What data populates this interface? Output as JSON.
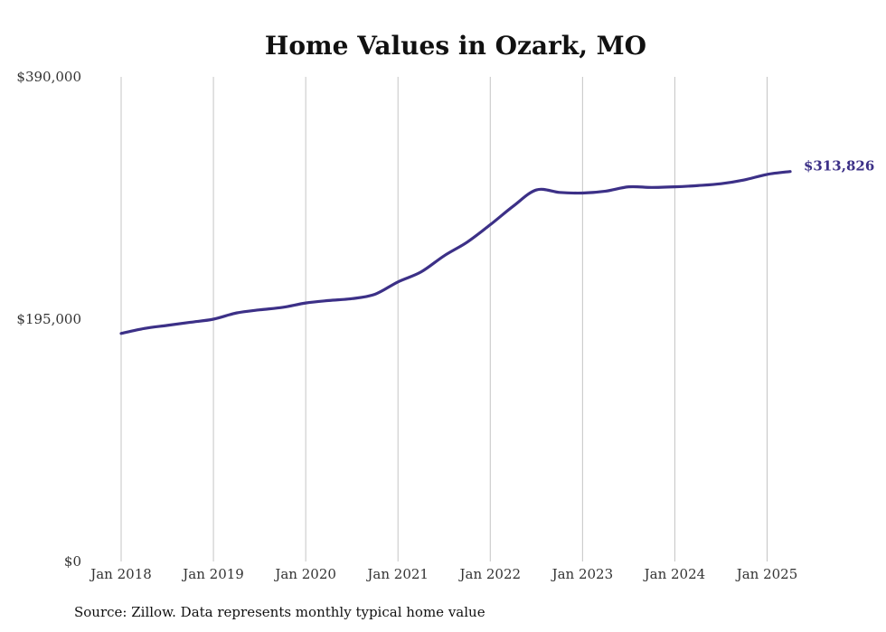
{
  "chart_data": {
    "type": "line",
    "title": "Home Values in Ozark, MO",
    "xlabel": "",
    "ylabel": "",
    "x_ticks": [
      "Jan 2018",
      "Jan 2019",
      "Jan 2020",
      "Jan 2021",
      "Jan 2022",
      "Jan 2023",
      "Jan 2024",
      "Jan 2025"
    ],
    "y_ticks": [
      0,
      195000,
      390000
    ],
    "y_tick_labels": [
      "$0",
      "$195,000",
      "$390,000"
    ],
    "ylim": [
      0,
      390000
    ],
    "xlim": [
      "2018-01",
      "2025-04"
    ],
    "grid": "vertical",
    "line_color": "#3c3087",
    "end_label": "$313,826",
    "series": [
      {
        "x": [
          "2018-01",
          "2018-04",
          "2018-07",
          "2018-10",
          "2019-01",
          "2019-04",
          "2019-07",
          "2019-10",
          "2020-01",
          "2020-04",
          "2020-07",
          "2020-10",
          "2021-01",
          "2021-04",
          "2021-07",
          "2021-10",
          "2022-01",
          "2022-04",
          "2022-07",
          "2022-10",
          "2023-01",
          "2023-04",
          "2023-07",
          "2023-10",
          "2024-01",
          "2024-04",
          "2024-07",
          "2024-10",
          "2025-01",
          "2025-04"
        ],
        "values": [
          183500,
          187500,
          190000,
          192500,
          195000,
          200000,
          202500,
          204500,
          208000,
          210000,
          211500,
          215000,
          225000,
          233000,
          246000,
          257000,
          271000,
          286000,
          299000,
          297000,
          296500,
          298000,
          301500,
          301000,
          301500,
          302500,
          304000,
          307000,
          311500,
          313826
        ]
      }
    ]
  },
  "source_note": "Source: Zillow. Data represents monthly typical home value"
}
